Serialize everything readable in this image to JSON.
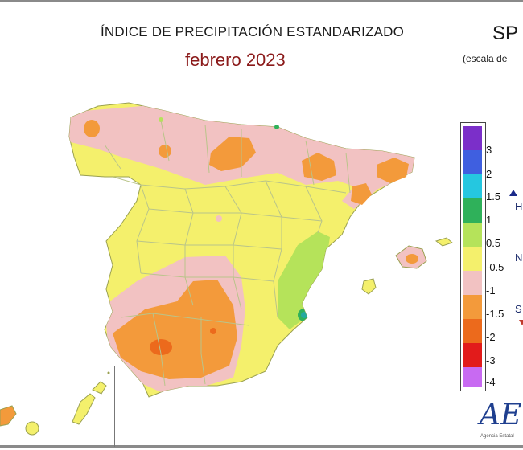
{
  "header": {
    "title": "ÍNDICE DE PRECIPITACIÓN ESTANDARIZADO",
    "subtitle": "febrero 2023",
    "index_code": "SP",
    "scale_note": "(escala de"
  },
  "legend": {
    "ticks": [
      "3",
      "2",
      "1.5",
      "1",
      "0.5",
      "-0.5",
      "-1",
      "-1.5",
      "-2",
      "-3",
      "-4"
    ],
    "colors": [
      "#7b2fc9",
      "#3f5fe0",
      "#25c7e0",
      "#2fb15a",
      "#b5e35a",
      "#f4f06c",
      "#f2c2c2",
      "#f39a3b",
      "#ec6a1c",
      "#e21b1b",
      "#c86af2"
    ],
    "side_labels": [
      "H",
      "N",
      "S"
    ]
  },
  "logo": {
    "text": "AE",
    "caption": "Agencia Estatal"
  },
  "map_colors": {
    "normal": "#f4f06c",
    "pink": "#f2c2c2",
    "orange": "#f39a3b",
    "dark_orange": "#ec6a1c",
    "light_green": "#b5e35a",
    "green": "#2fb15a",
    "teal": "#25a9a0",
    "province_lines": "#b9c48a"
  }
}
